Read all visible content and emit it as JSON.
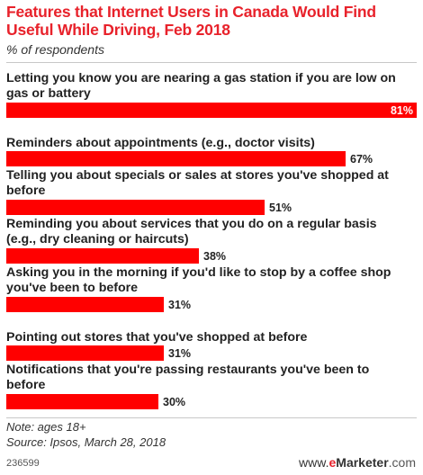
{
  "title": "Features that Internet Users in Canada Would Find Useful While Driving, Feb 2018",
  "subtitle": "% of respondents",
  "note": "Note: ages 18+",
  "source": "Source: Ipsos, March 28, 2018",
  "chart_id": "236599",
  "brand": {
    "prefix": "www.",
    "e": "e",
    "name": "Marketer",
    "suffix": ".com"
  },
  "colors": {
    "bar": "#ff0000",
    "title": "#e8222b",
    "value_label_on_bar": "#ffffff",
    "value_label": "#222222"
  },
  "chart_data": {
    "type": "bar",
    "orientation": "horizontal",
    "categories": [
      "Letting you know you are nearing a gas station if you are low on gas or battery",
      "Reminders about appointments (e.g., doctor visits)",
      "Telling you about specials or sales at stores you've shopped at before",
      "Reminding you about services that you do on a regular basis (e.g., dry cleaning or haircuts)",
      "Asking you in the morning if you'd like to stop by a coffee shop you've been to before",
      "Pointing out stores that you've shopped at before",
      "Notifications that you're passing restaurants you've been to before"
    ],
    "values": [
      81,
      67,
      51,
      38,
      31,
      31,
      30
    ],
    "value_labels": [
      "81%",
      "67%",
      "51%",
      "38%",
      "31%",
      "31%",
      "30%"
    ],
    "xlim": [
      0,
      81
    ],
    "title": "Features that Internet Users in Canada Would Find Useful While Driving, Feb 2018",
    "subtitle": "% of respondents",
    "xlabel": "",
    "ylabel": "",
    "grid": false,
    "legend": "none"
  }
}
